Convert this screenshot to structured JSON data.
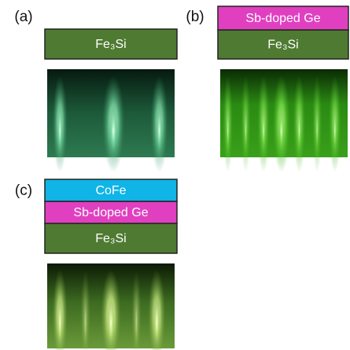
{
  "panels": [
    {
      "label": "(a)",
      "layers": [
        "Fe₃Si"
      ]
    },
    {
      "label": "(b)",
      "layers": [
        "Sb-doped Ge",
        "Fe₃Si"
      ]
    },
    {
      "label": "(c)",
      "layers": [
        "CoFe",
        "Sb-doped Ge",
        "Fe₃Si"
      ]
    }
  ]
}
